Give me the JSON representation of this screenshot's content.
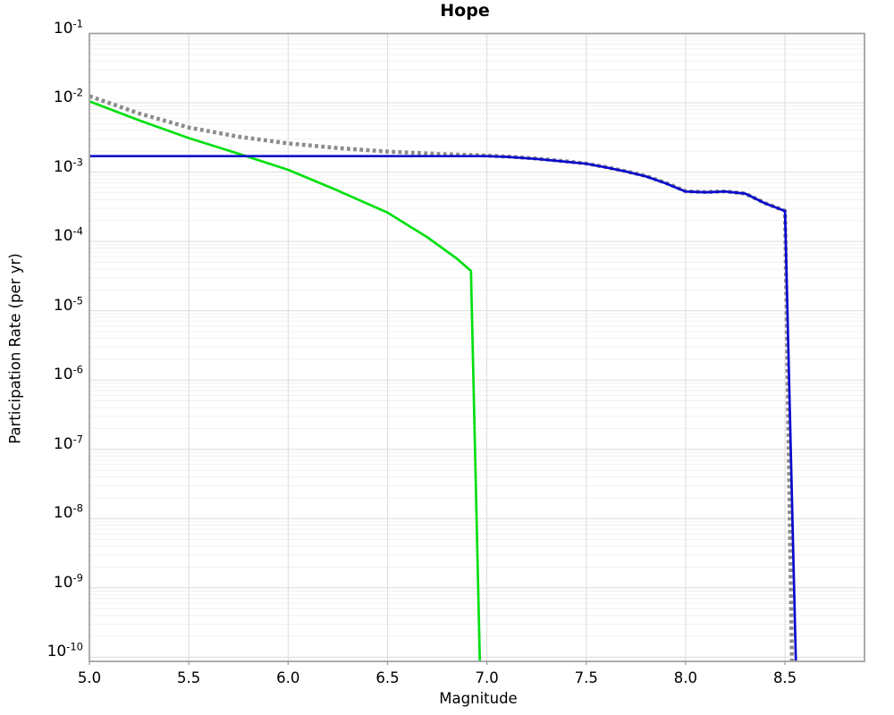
{
  "chart_data": {
    "type": "line",
    "title": "Hope",
    "xlabel": "Magnitude",
    "ylabel": "Participation Rate (per yr)",
    "x_range": [
      5.0,
      8.9
    ],
    "y_log_range": [
      -10.06,
      -1
    ],
    "x_ticks": [
      {
        "value": 5.0,
        "label": "5.0"
      },
      {
        "value": 5.5,
        "label": "5.5"
      },
      {
        "value": 6.0,
        "label": "6.0"
      },
      {
        "value": 6.5,
        "label": "6.5"
      },
      {
        "value": 7.0,
        "label": "7.0"
      },
      {
        "value": 7.5,
        "label": "7.5"
      },
      {
        "value": 8.0,
        "label": "8.0"
      },
      {
        "value": 8.5,
        "label": "8.5"
      }
    ],
    "y_ticks": [
      {
        "exponent": -1
      },
      {
        "exponent": -2
      },
      {
        "exponent": -3
      },
      {
        "exponent": -4
      },
      {
        "exponent": -5
      },
      {
        "exponent": -6
      },
      {
        "exponent": -7
      },
      {
        "exponent": -8
      },
      {
        "exponent": -9
      },
      {
        "exponent": -10
      }
    ],
    "grid": {
      "major": true,
      "minor": true,
      "legend": "none"
    },
    "series": [
      {
        "name": "green-curve",
        "color": "#00df10",
        "style": "solid",
        "width": 2.7,
        "points": [
          [
            5.0,
            0.0105
          ],
          [
            5.25,
            0.0056
          ],
          [
            5.5,
            0.0031
          ],
          [
            5.75,
            0.00185
          ],
          [
            6.0,
            0.00108
          ],
          [
            6.25,
            0.00054
          ],
          [
            6.5,
            0.00026
          ],
          [
            6.7,
            0.000115
          ],
          [
            6.85,
            5.6e-05
          ],
          [
            6.92,
            3.75e-05
          ],
          [
            6.965,
            8e-11
          ]
        ]
      },
      {
        "name": "gray-dotted-curve",
        "color": "#8c8c8c",
        "style": "dotted",
        "width": 4.5,
        "points": [
          [
            5.0,
            0.0125
          ],
          [
            5.25,
            0.007
          ],
          [
            5.5,
            0.0044
          ],
          [
            5.75,
            0.00325
          ],
          [
            6.0,
            0.0026
          ],
          [
            6.25,
            0.00222
          ],
          [
            6.5,
            0.00198
          ],
          [
            6.75,
            0.00183
          ],
          [
            7.0,
            0.00173
          ],
          [
            7.1,
            0.00168
          ],
          [
            7.25,
            0.00157
          ],
          [
            7.4,
            0.00143
          ],
          [
            7.5,
            0.00133
          ],
          [
            7.6,
            0.00118
          ],
          [
            7.7,
            0.00103
          ],
          [
            7.8,
            0.00088
          ],
          [
            7.9,
            0.0007
          ],
          [
            7.95,
            0.00061
          ],
          [
            8.0,
            0.00053
          ],
          [
            8.1,
            0.000515
          ],
          [
            8.2,
            0.000527
          ],
          [
            8.3,
            0.000492
          ],
          [
            8.4,
            0.000357
          ],
          [
            8.5,
            0.000277
          ],
          [
            8.535,
            8e-11
          ]
        ]
      },
      {
        "name": "blue-curve",
        "color": "#0a0acd",
        "style": "solid",
        "width": 2.7,
        "points": [
          [
            5.0,
            0.0017
          ],
          [
            7.0,
            0.0017
          ],
          [
            7.1,
            0.00166
          ],
          [
            7.25,
            0.00155
          ],
          [
            7.4,
            0.00141
          ],
          [
            7.5,
            0.00132
          ],
          [
            7.6,
            0.00117
          ],
          [
            7.7,
            0.00102
          ],
          [
            7.8,
            0.00087
          ],
          [
            7.9,
            0.00069
          ],
          [
            7.95,
            0.0006
          ],
          [
            8.0,
            0.000525
          ],
          [
            8.1,
            0.000512
          ],
          [
            8.2,
            0.000524
          ],
          [
            8.3,
            0.00049
          ],
          [
            8.4,
            0.000355
          ],
          [
            8.5,
            0.000275
          ],
          [
            8.555,
            8e-11
          ]
        ]
      }
    ],
    "colors": {
      "major_grid": "#dcdcdc",
      "minor_grid": "#f0f0f0",
      "border": "#a3a3a3",
      "tick_mark": "#999999",
      "text": "#000000",
      "background": "#ffffff"
    }
  }
}
